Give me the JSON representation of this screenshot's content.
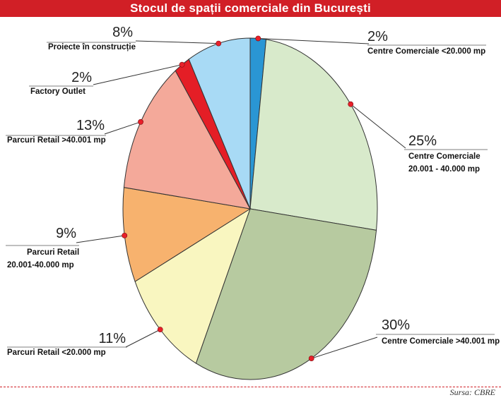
{
  "title": "Stocul de spații comerciale din București",
  "source": "Sursa: CBRE",
  "colors": {
    "title_bar": "#d11f26",
    "leader_dot": "#e8202a"
  },
  "chart_data": {
    "type": "pie",
    "title": "Stocul de spații comerciale din București",
    "start": "12 o'clock, clockwise",
    "slices": [
      {
        "label": "Centre Comerciale <20.000 mp",
        "pct_label": "2%",
        "value": 2,
        "color": "#2a96d4"
      },
      {
        "label": "Centre Comerciale 20.001 - 40.000 mp",
        "pct_label": "25%",
        "value": 25,
        "color": "#d8eacb"
      },
      {
        "label": "Centre Comerciale >40.001 mp",
        "pct_label": "30%",
        "value": 30,
        "color": "#b7caa0"
      },
      {
        "label": "Parcuri Retail <20.000 mp",
        "pct_label": "11%",
        "value": 11,
        "color": "#f9f6c0"
      },
      {
        "label": "Parcuri Retail 20.001-40.000 mp",
        "pct_label": "9%",
        "value": 9,
        "color": "#f7b26e"
      },
      {
        "label": "Parcuri Retail >40.001 mp",
        "pct_label": "13%",
        "value": 13,
        "color": "#f4a99a"
      },
      {
        "label": "Factory Outlet",
        "pct_label": "2%",
        "value": 2,
        "color": "#e41e26"
      },
      {
        "label": "Proiecte în construcție",
        "pct_label": "8%",
        "value": 8,
        "color": "#a8daf5"
      }
    ]
  }
}
